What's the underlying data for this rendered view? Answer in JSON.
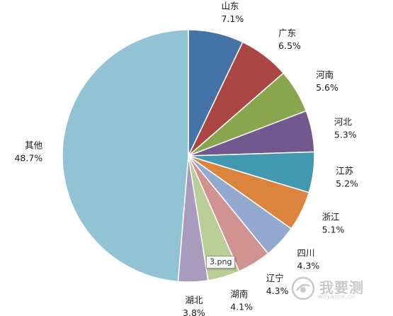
{
  "chart_data": {
    "type": "pie",
    "start_angle_deg": 0,
    "direction": "clockwise",
    "slices": [
      {
        "label": "山东",
        "value": 7.1,
        "value_text": "7.1%",
        "color": "#4572A7"
      },
      {
        "label": "广东",
        "value": 6.5,
        "value_text": "6.5%",
        "color": "#AA4643"
      },
      {
        "label": "河南",
        "value": 5.6,
        "value_text": "5.6%",
        "color": "#89A54E"
      },
      {
        "label": "河北",
        "value": 5.3,
        "value_text": "5.3%",
        "color": "#71588F"
      },
      {
        "label": "江苏",
        "value": 5.2,
        "value_text": "5.2%",
        "color": "#4198AF"
      },
      {
        "label": "浙江",
        "value": 5.1,
        "value_text": "5.1%",
        "color": "#DB843D"
      },
      {
        "label": "四川",
        "value": 4.3,
        "value_text": "4.3%",
        "color": "#93A9CF"
      },
      {
        "label": "辽宁",
        "value": 4.3,
        "value_text": "4.3%",
        "color": "#D19392"
      },
      {
        "label": "湖南",
        "value": 4.1,
        "value_text": "4.1%",
        "color": "#B9CD96"
      },
      {
        "label": "湖北",
        "value": 3.8,
        "value_text": "3.8%",
        "color": "#A99BBD"
      },
      {
        "label": "其他",
        "value": 48.7,
        "value_text": "48.7%",
        "color": "#92C3D4"
      }
    ]
  },
  "tooltip": {
    "text": "3.png"
  },
  "watermark": {
    "text": "我要测",
    "url": "woyaoce.cn"
  }
}
